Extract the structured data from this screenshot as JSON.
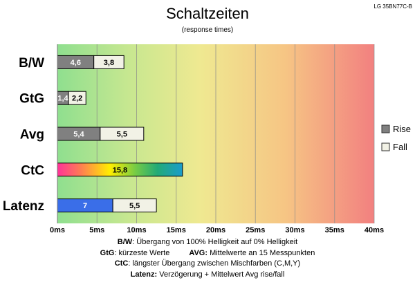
{
  "chart_data": {
    "type": "bar",
    "orientation": "horizontal",
    "stacked": true,
    "title": "Schaltzeiten",
    "subtitle": "(response times)",
    "model": "LG 35BN77C-B",
    "categories": [
      "B/W",
      "GtG",
      "Avg",
      "CtC",
      "Latenz"
    ],
    "series": [
      {
        "name": "Rise",
        "values": [
          4.6,
          1.4,
          5.4,
          null,
          null
        ],
        "labels": [
          "4,6",
          "1,4",
          "5,4",
          "",
          ""
        ]
      },
      {
        "name": "Fall",
        "values": [
          3.8,
          2.2,
          5.5,
          null,
          5.5
        ],
        "labels": [
          "3,8",
          "2,2",
          "5,5",
          "",
          "5,5"
        ]
      }
    ],
    "ctc": {
      "value": 15.8,
      "label": "15,8"
    },
    "latency": {
      "value": 7,
      "label": "7"
    },
    "xlim": [
      0,
      40
    ],
    "xticks": [
      "0ms",
      "5ms",
      "10ms",
      "15ms",
      "20ms",
      "25ms",
      "30ms",
      "35ms",
      "40ms"
    ],
    "legend_position": "right",
    "grid": true,
    "colors": {
      "rise": "#808080",
      "fall": "#f2f2e6",
      "latency": "#3a6ee8",
      "background_gradient": [
        "#90e090",
        "#c8e890",
        "#f0e890",
        "#f5c080",
        "#f08080"
      ],
      "ctc_gradient": [
        "#ff3399",
        "#ffee00",
        "#22aa66",
        "#1a9ccc"
      ]
    }
  },
  "footer": {
    "bw_key": "B/W",
    "bw_text": ":  Übergang von 100% Helligkeit auf 0% Helligkeit",
    "gtg_key": "GtG",
    "gtg_text": ": kürzeste  Werte",
    "avg_key": "AVG:",
    "avg_text": " Mittelwerte  an 15 Messpunkten",
    "ctc_key": "CtC",
    "ctc_text": ": längster Übergang  zwischen Mischfarben (C,M,Y)",
    "lat_key": "Latenz:",
    "lat_text": " Verzögerung  + Mittelwert Avg rise/fall"
  }
}
